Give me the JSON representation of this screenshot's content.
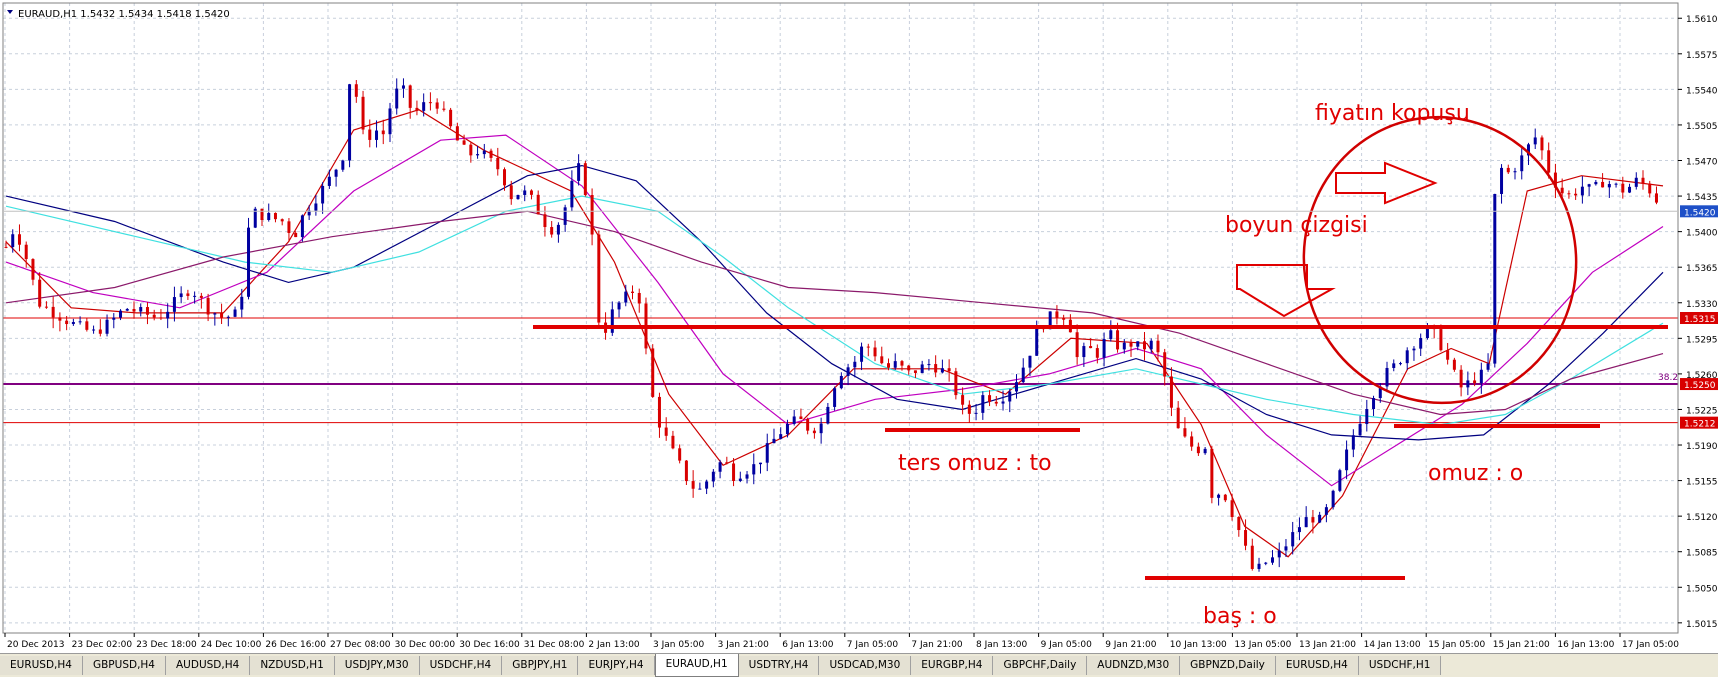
{
  "header": {
    "symbol_info": "EURAUD,H1  1.5432 1.5434 1.5418 1.5420"
  },
  "colors": {
    "bull_candle": "#0000a0",
    "bear_candle": "#d80000",
    "grid": "#c8d0dc",
    "annotation": "#e00000",
    "fib_line": "#800080",
    "level_line": "#e00000",
    "ma_fast": "#cc0000",
    "ma_medium": "#c000c0",
    "ma_navy": "#000080",
    "ma_cyan": "#40e0e0",
    "ma_slow": "#8b1a6b",
    "price_marker_bg": "#d80000",
    "current_price_bg": "#1e50c8"
  },
  "chart_data": {
    "type": "candlestick",
    "symbol": "EURAUD",
    "timeframe": "H1",
    "ylim": [
      1.5005,
      1.5625
    ],
    "y_ticks": [
      "1.5610",
      "1.5575",
      "1.5540",
      "1.5505",
      "1.5470",
      "1.5435",
      "1.5400",
      "1.5365",
      "1.5330",
      "1.5295",
      "1.5260",
      "1.5225",
      "1.5190",
      "1.5155",
      "1.5120",
      "1.5085",
      "1.5050",
      "1.5015"
    ],
    "x_tick_labels": [
      "20 Dec 2013",
      "23 Dec 02:00",
      "23 Dec 18:00",
      "24 Dec 10:00",
      "26 Dec 16:00",
      "27 Dec 08:00",
      "30 Dec 00:00",
      "30 Dec 16:00",
      "31 Dec 08:00",
      "2 Jan 13:00",
      "3 Jan 05:00",
      "3 Jan 21:00",
      "6 Jan 13:00",
      "7 Jan 05:00",
      "7 Jan 21:00",
      "8 Jan 13:00",
      "9 Jan 05:00",
      "9 Jan 21:00",
      "10 Jan 13:00",
      "13 Jan 05:00",
      "13 Jan 21:00",
      "14 Jan 13:00",
      "15 Jan 05:00",
      "15 Jan 21:00",
      "16 Jan 13:00",
      "17 Jan 05:00"
    ],
    "price_path": [
      [
        0,
        1.5385
      ],
      [
        8,
        1.5405
      ],
      [
        20,
        1.537
      ],
      [
        30,
        1.533
      ],
      [
        45,
        1.532
      ],
      [
        60,
        1.531
      ],
      [
        80,
        1.53
      ],
      [
        95,
        1.531
      ],
      [
        110,
        1.5325
      ],
      [
        125,
        1.532
      ],
      [
        140,
        1.5315
      ],
      [
        155,
        1.533
      ],
      [
        170,
        1.5345
      ],
      [
        185,
        1.5325
      ],
      [
        200,
        1.5315
      ],
      [
        215,
        1.532
      ],
      [
        225,
        1.542
      ],
      [
        240,
        1.5415
      ],
      [
        255,
        1.541
      ],
      [
        265,
        1.5395
      ],
      [
        275,
        1.542
      ],
      [
        290,
        1.544
      ],
      [
        300,
        1.5455
      ],
      [
        310,
        1.5475
      ],
      [
        315,
        1.5545
      ],
      [
        320,
        1.5555
      ],
      [
        325,
        1.551
      ],
      [
        330,
        1.549
      ],
      [
        340,
        1.55
      ],
      [
        350,
        1.5495
      ],
      [
        355,
        1.5535
      ],
      [
        365,
        1.554
      ],
      [
        375,
        1.5515
      ],
      [
        385,
        1.5525
      ],
      [
        395,
        1.553
      ],
      [
        405,
        1.551
      ],
      [
        415,
        1.549
      ],
      [
        425,
        1.5475
      ],
      [
        435,
        1.548
      ],
      [
        445,
        1.547
      ],
      [
        455,
        1.546
      ],
      [
        465,
        1.5435
      ],
      [
        475,
        1.544
      ],
      [
        485,
        1.543
      ],
      [
        495,
        1.541
      ],
      [
        505,
        1.54
      ],
      [
        515,
        1.5425
      ],
      [
        525,
        1.546
      ],
      [
        530,
        1.5465
      ],
      [
        540,
        1.539
      ],
      [
        545,
        1.5315
      ],
      [
        550,
        1.53
      ],
      [
        560,
        1.5325
      ],
      [
        570,
        1.5335
      ],
      [
        580,
        1.5345
      ],
      [
        585,
        1.5325
      ],
      [
        592,
        1.525
      ],
      [
        600,
        1.5215
      ],
      [
        610,
        1.519
      ],
      [
        620,
        1.517
      ],
      [
        630,
        1.515
      ],
      [
        640,
        1.5145
      ],
      [
        650,
        1.5165
      ],
      [
        660,
        1.5175
      ],
      [
        670,
        1.516
      ],
      [
        680,
        1.5165
      ],
      [
        690,
        1.517
      ],
      [
        700,
        1.5185
      ],
      [
        710,
        1.52
      ],
      [
        720,
        1.521
      ],
      [
        730,
        1.5215
      ],
      [
        740,
        1.5205
      ],
      [
        750,
        1.521
      ],
      [
        760,
        1.5245
      ],
      [
        770,
        1.5265
      ],
      [
        780,
        1.527
      ],
      [
        790,
        1.529
      ],
      [
        800,
        1.528
      ],
      [
        810,
        1.5265
      ],
      [
        820,
        1.527
      ],
      [
        830,
        1.526
      ],
      [
        840,
        1.5265
      ],
      [
        850,
        1.527
      ],
      [
        860,
        1.5265
      ],
      [
        870,
        1.5255
      ],
      [
        880,
        1.5225
      ],
      [
        890,
        1.522
      ],
      [
        900,
        1.524
      ],
      [
        910,
        1.5235
      ],
      [
        920,
        1.524
      ],
      [
        930,
        1.5255
      ],
      [
        940,
        1.5275
      ],
      [
        950,
        1.5305
      ],
      [
        960,
        1.5315
      ],
      [
        970,
        1.532
      ],
      [
        978,
        1.5315
      ],
      [
        985,
        1.5275
      ],
      [
        995,
        1.5285
      ],
      [
        1005,
        1.528
      ],
      [
        1015,
        1.53
      ],
      [
        1025,
        1.5285
      ],
      [
        1035,
        1.529
      ],
      [
        1045,
        1.5285
      ],
      [
        1055,
        1.529
      ],
      [
        1062,
        1.5275
      ],
      [
        1068,
        1.525
      ],
      [
        1075,
        1.521
      ],
      [
        1085,
        1.5195
      ],
      [
        1095,
        1.5185
      ],
      [
        1105,
        1.519
      ],
      [
        1110,
        1.514
      ],
      [
        1120,
        1.5145
      ],
      [
        1130,
        1.512
      ],
      [
        1140,
        1.509
      ],
      [
        1145,
        1.507
      ],
      [
        1150,
        1.5065
      ],
      [
        1160,
        1.5075
      ],
      [
        1170,
        1.508
      ],
      [
        1180,
        1.5095
      ],
      [
        1190,
        1.511
      ],
      [
        1200,
        1.512
      ],
      [
        1210,
        1.5115
      ],
      [
        1220,
        1.5135
      ],
      [
        1230,
        1.517
      ],
      [
        1240,
        1.52
      ],
      [
        1250,
        1.5225
      ],
      [
        1260,
        1.5245
      ],
      [
        1270,
        1.526
      ],
      [
        1280,
        1.527
      ],
      [
        1290,
        1.5285
      ],
      [
        1300,
        1.5295
      ],
      [
        1310,
        1.5305
      ],
      [
        1320,
        1.529
      ],
      [
        1330,
        1.5265
      ],
      [
        1340,
        1.5245
      ],
      [
        1350,
        1.5255
      ],
      [
        1360,
        1.526
      ],
      [
        1365,
        1.527
      ],
      [
        1368,
        1.539
      ],
      [
        1372,
        1.547
      ],
      [
        1380,
        1.5455
      ],
      [
        1390,
        1.5465
      ],
      [
        1400,
        1.548
      ],
      [
        1405,
        1.5495
      ],
      [
        1410,
        1.549
      ],
      [
        1420,
        1.546
      ],
      [
        1430,
        1.544
      ],
      [
        1440,
        1.5435
      ],
      [
        1450,
        1.5445
      ],
      [
        1460,
        1.544
      ],
      [
        1470,
        1.545
      ],
      [
        1480,
        1.5445
      ],
      [
        1490,
        1.544
      ],
      [
        1500,
        1.545
      ],
      [
        1510,
        1.5445
      ],
      [
        1520,
        1.543
      ],
      [
        1525,
        1.542
      ]
    ],
    "moving_averages": [
      {
        "color": "#cc0000",
        "points": [
          [
            0,
            1.539
          ],
          [
            60,
            1.5325
          ],
          [
            120,
            1.532
          ],
          [
            200,
            1.532
          ],
          [
            260,
            1.539
          ],
          [
            320,
            1.55
          ],
          [
            380,
            1.552
          ],
          [
            440,
            1.548
          ],
          [
            520,
            1.544
          ],
          [
            560,
            1.537
          ],
          [
            610,
            1.524
          ],
          [
            660,
            1.517
          ],
          [
            720,
            1.52
          ],
          [
            780,
            1.5265
          ],
          [
            860,
            1.5265
          ],
          [
            920,
            1.524
          ],
          [
            980,
            1.5295
          ],
          [
            1050,
            1.529
          ],
          [
            1100,
            1.521
          ],
          [
            1140,
            1.511
          ],
          [
            1180,
            1.508
          ],
          [
            1230,
            1.514
          ],
          [
            1290,
            1.5265
          ],
          [
            1330,
            1.5285
          ],
          [
            1365,
            1.527
          ],
          [
            1400,
            1.544
          ],
          [
            1450,
            1.5455
          ],
          [
            1525,
            1.5445
          ]
        ]
      },
      {
        "color": "#c000c0",
        "points": [
          [
            0,
            1.537
          ],
          [
            80,
            1.534
          ],
          [
            160,
            1.5325
          ],
          [
            240,
            1.536
          ],
          [
            320,
            1.544
          ],
          [
            400,
            1.549
          ],
          [
            460,
            1.5495
          ],
          [
            530,
            1.5445
          ],
          [
            600,
            1.535
          ],
          [
            660,
            1.526
          ],
          [
            720,
            1.521
          ],
          [
            800,
            1.5235
          ],
          [
            880,
            1.5245
          ],
          [
            960,
            1.526
          ],
          [
            1040,
            1.5285
          ],
          [
            1100,
            1.5265
          ],
          [
            1160,
            1.52
          ],
          [
            1220,
            1.515
          ],
          [
            1280,
            1.519
          ],
          [
            1340,
            1.523
          ],
          [
            1400,
            1.529
          ],
          [
            1460,
            1.536
          ],
          [
            1525,
            1.5405
          ]
        ]
      },
      {
        "color": "#000080",
        "points": [
          [
            0,
            1.5435
          ],
          [
            100,
            1.541
          ],
          [
            200,
            1.537
          ],
          [
            260,
            1.535
          ],
          [
            320,
            1.5365
          ],
          [
            400,
            1.541
          ],
          [
            480,
            1.5455
          ],
          [
            530,
            1.5465
          ],
          [
            580,
            1.545
          ],
          [
            640,
            1.539
          ],
          [
            700,
            1.532
          ],
          [
            760,
            1.527
          ],
          [
            820,
            1.5235
          ],
          [
            880,
            1.5225
          ],
          [
            960,
            1.525
          ],
          [
            1040,
            1.5275
          ],
          [
            1100,
            1.5255
          ],
          [
            1160,
            1.522
          ],
          [
            1220,
            1.52
          ],
          [
            1300,
            1.5195
          ],
          [
            1360,
            1.52
          ],
          [
            1420,
            1.525
          ],
          [
            1470,
            1.53
          ],
          [
            1525,
            1.536
          ]
        ]
      },
      {
        "color": "#40e0e0",
        "points": [
          [
            0,
            1.5425
          ],
          [
            120,
            1.5395
          ],
          [
            220,
            1.537
          ],
          [
            300,
            1.536
          ],
          [
            380,
            1.538
          ],
          [
            460,
            1.542
          ],
          [
            530,
            1.5435
          ],
          [
            600,
            1.542
          ],
          [
            660,
            1.5375
          ],
          [
            720,
            1.5325
          ],
          [
            800,
            1.527
          ],
          [
            880,
            1.524
          ],
          [
            960,
            1.525
          ],
          [
            1040,
            1.5265
          ],
          [
            1100,
            1.525
          ],
          [
            1160,
            1.5235
          ],
          [
            1240,
            1.522
          ],
          [
            1320,
            1.521
          ],
          [
            1380,
            1.522
          ],
          [
            1440,
            1.5255
          ],
          [
            1525,
            1.531
          ]
        ]
      },
      {
        "color": "#8b1a6b",
        "points": [
          [
            0,
            1.533
          ],
          [
            100,
            1.5345
          ],
          [
            200,
            1.5375
          ],
          [
            300,
            1.5395
          ],
          [
            400,
            1.541
          ],
          [
            480,
            1.542
          ],
          [
            560,
            1.54
          ],
          [
            640,
            1.537
          ],
          [
            720,
            1.5345
          ],
          [
            800,
            1.534
          ],
          [
            900,
            1.533
          ],
          [
            1000,
            1.532
          ],
          [
            1080,
            1.53
          ],
          [
            1160,
            1.527
          ],
          [
            1240,
            1.524
          ],
          [
            1320,
            1.522
          ],
          [
            1380,
            1.5225
          ],
          [
            1440,
            1.5255
          ],
          [
            1525,
            1.528
          ]
        ]
      }
    ],
    "horizontal_levels": [
      {
        "value": 1.5315,
        "label": "1.5315"
      },
      {
        "value": 1.525,
        "label": "1.5250",
        "fib_label": "38.2"
      },
      {
        "value": 1.5212,
        "label": "1.5212"
      }
    ],
    "current_price": {
      "value": 1.542,
      "label": "1.5420"
    },
    "annotations": [
      {
        "text": "fiyatın kopuşu"
      },
      {
        "text": "boyun çizgisi"
      },
      {
        "text": "ters omuz : to"
      },
      {
        "text": "omuz : o"
      },
      {
        "text": "baş : o"
      }
    ]
  },
  "tabs": [
    {
      "label": "EURUSD,H4"
    },
    {
      "label": "GBPUSD,H4"
    },
    {
      "label": "AUDUSD,H4"
    },
    {
      "label": "NZDUSD,H1"
    },
    {
      "label": "USDJPY,M30"
    },
    {
      "label": "USDCHF,H4"
    },
    {
      "label": "GBPJPY,H1"
    },
    {
      "label": "EURJPY,H4"
    },
    {
      "label": "EURAUD,H1",
      "active": true
    },
    {
      "label": "USDTRY,H4"
    },
    {
      "label": "USDCAD,M30"
    },
    {
      "label": "EURGBP,H4"
    },
    {
      "label": "GBPCHF,Daily"
    },
    {
      "label": "AUDNZD,M30"
    },
    {
      "label": "GBPNZD,Daily"
    },
    {
      "label": "EURUSD,H4"
    },
    {
      "label": "USDCHF,H1"
    }
  ]
}
